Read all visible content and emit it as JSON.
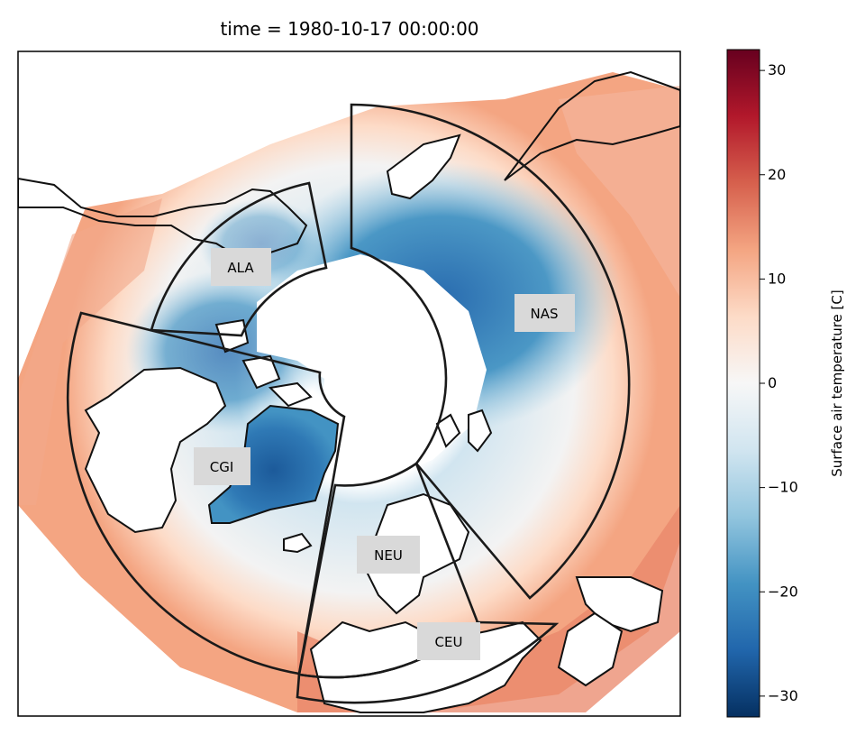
{
  "figure": {
    "title": "time = 1980-10-17 00:00:00"
  },
  "map": {
    "projection": "north polar stereographic",
    "variable": "Surface air temperature",
    "regions": [
      {
        "code": "ALA",
        "label": "ALA"
      },
      {
        "code": "NAS",
        "label": "NAS"
      },
      {
        "code": "CGI",
        "label": "CGI"
      },
      {
        "code": "NEU",
        "label": "NEU"
      },
      {
        "code": "CEU",
        "label": "CEU"
      }
    ]
  },
  "colorbar": {
    "label": "Surface air temperature [C]",
    "colormap": "RdBu_r",
    "vmin": -32,
    "vmax": 32,
    "ticks": [
      {
        "value": 30,
        "label": "30"
      },
      {
        "value": 20,
        "label": "20"
      },
      {
        "value": 10,
        "label": "10"
      },
      {
        "value": 0,
        "label": "0"
      },
      {
        "value": -10,
        "label": "−10"
      },
      {
        "value": -20,
        "label": "−20"
      },
      {
        "value": -30,
        "label": "−30"
      }
    ],
    "colors": [
      "#053061",
      "#2166ac",
      "#4393c3",
      "#92c5de",
      "#d1e5f0",
      "#f7f7f7",
      "#fddbc7",
      "#f4a582",
      "#d6604d",
      "#b2182b",
      "#67001f"
    ]
  }
}
